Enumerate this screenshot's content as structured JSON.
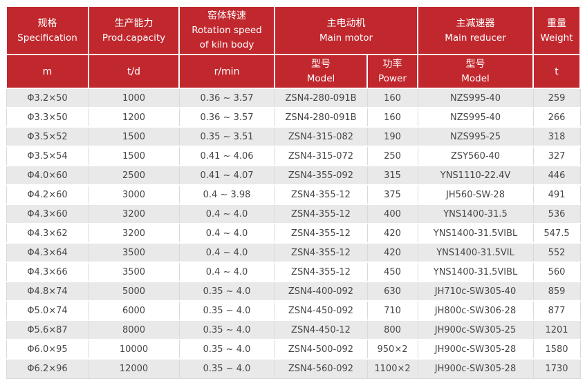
{
  "chart_data": {
    "type": "table",
    "header": {
      "spec_zh": "规格",
      "spec_en": "Specification",
      "capacity_zh": "生产能力",
      "capacity_en": "Prod.capacity",
      "rotation_zh": "窑体转速",
      "rotation_en1": "Rotation speed",
      "rotation_en2": "of kiln body",
      "motor_zh": "主电动机",
      "motor_en": "Main motor",
      "reducer_zh": "主减速器",
      "reducer_en": "Main reducer",
      "weight_zh": "重量",
      "weight_en": "Weight",
      "unit_spec": "m",
      "unit_capacity": "t/d",
      "unit_rotation": "r/min",
      "motor_model_zh": "型号",
      "motor_model_en": "Model",
      "power_zh": "功率",
      "power_en": "Power",
      "reducer_model_zh": "型号",
      "reducer_model_en": "Model",
      "unit_weight": "t"
    },
    "columns": [
      "Specification (m)",
      "Prod.capacity (t/d)",
      "Rotation speed of kiln body (r/min)",
      "Main motor Model",
      "Main motor Power",
      "Main reducer Model",
      "Weight (t)"
    ],
    "rows": [
      [
        "Φ3.2×50",
        "1000",
        "0.36 ~ 3.57",
        "ZSN4-280-091B",
        "160",
        "NZS995-40",
        "259"
      ],
      [
        "Φ3.3×50",
        "1200",
        "0.36 ~ 3.57",
        "ZSN4-280-091B",
        "160",
        "NZS995-40",
        "266"
      ],
      [
        "Φ3.5×52",
        "1500",
        "0.35 ~ 3.51",
        "ZSN4-315-082",
        "190",
        "NZS995-25",
        "318"
      ],
      [
        "Φ3.5×54",
        "1500",
        "0.41 ~ 4.06",
        "ZSN4-315-072",
        "250",
        "ZSY560-40",
        "327"
      ],
      [
        "Φ4.0×60",
        "2500",
        "0.41 ~ 4.07",
        "ZSN4-355-092",
        "315",
        "YNS1110-22.4V",
        "446"
      ],
      [
        "Φ4.2×60",
        "3000",
        "0.4 ~ 3.98",
        "ZSN4-355-12",
        "375",
        "JH560-SW-28",
        "491"
      ],
      [
        "Φ4.3×60",
        "3200",
        "0.4 ~ 4.0",
        "ZSN4-355-12",
        "400",
        "YNS1400-31.5",
        "536"
      ],
      [
        "Φ4.3×62",
        "3200",
        "0.4 ~ 4.0",
        "ZSN4-355-12",
        "420",
        "YNS1400-31.5VIBL",
        "547.5"
      ],
      [
        "Φ4.3×64",
        "3500",
        "0.4 ~ 4.0",
        "ZSN4-355-12",
        "420",
        "YNS1400-31.5VIL",
        "552"
      ],
      [
        "Φ4.3×66",
        "3500",
        "0.4 ~ 4.0",
        "ZSN4-355-12",
        "450",
        "YNS1400-31.5VIBL",
        "560"
      ],
      [
        "Φ4.8×74",
        "5000",
        "0.35 ~ 4.0",
        "ZSN4-400-092",
        "630",
        "JH710c-SW305-40",
        "859"
      ],
      [
        "Φ5.0×74",
        "6000",
        "0.35 ~ 4.0",
        "ZSN4-450-092",
        "710",
        "JH800c-SW306-28",
        "877"
      ],
      [
        "Φ5.6×87",
        "8000",
        "0.35 ~ 4.0",
        "ZSN4-450-12",
        "800",
        "JH900c-SW305-25",
        "1201"
      ],
      [
        "Φ6.0×95",
        "10000",
        "0.35 ~ 4.0",
        "ZSN4-500-092",
        "950×2",
        "JH900c-SW305-28",
        "1580"
      ],
      [
        "Φ6.2×96",
        "12000",
        "0.35 ~ 4.0",
        "ZSN4-560-092",
        "1100×2",
        "JH900c-SW305-28",
        "1730"
      ]
    ],
    "layout": {
      "striped": true,
      "first_data_row_shaded": true
    }
  },
  "colors": {
    "header_bg": "#c1282e",
    "header_text": "#ffffff",
    "row_alt_bg": "#e9e9e9",
    "row_bg": "#ffffff",
    "body_text": "#464646",
    "grid_line": "#d9d9d9",
    "header_separator": "#ffffff"
  }
}
